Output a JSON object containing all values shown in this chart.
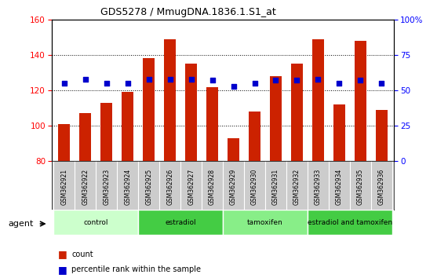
{
  "title": "GDS5278 / MmugDNA.1836.1.S1_at",
  "samples": [
    "GSM362921",
    "GSM362922",
    "GSM362923",
    "GSM362924",
    "GSM362925",
    "GSM362926",
    "GSM362927",
    "GSM362928",
    "GSM362929",
    "GSM362930",
    "GSM362931",
    "GSM362932",
    "GSM362933",
    "GSM362934",
    "GSM362935",
    "GSM362936"
  ],
  "counts": [
    101,
    107,
    113,
    119,
    138,
    149,
    135,
    122,
    93,
    108,
    128,
    135,
    149,
    112,
    148,
    109
  ],
  "percentile_ranks": [
    55,
    58,
    55,
    55,
    58,
    58,
    58,
    57,
    53,
    55,
    57,
    57,
    58,
    55,
    57,
    55
  ],
  "bar_color": "#cc2200",
  "dot_color": "#0000cc",
  "ylim_left": [
    80,
    160
  ],
  "ylim_right": [
    0,
    100
  ],
  "yticks_left": [
    80,
    100,
    120,
    140,
    160
  ],
  "yticks_right": [
    0,
    25,
    50,
    75,
    100
  ],
  "ytick_labels_right": [
    "0",
    "25",
    "50",
    "75",
    "100%"
  ],
  "groups": [
    {
      "label": "control",
      "start": 0,
      "end": 4,
      "color": "#ccffcc"
    },
    {
      "label": "estradiol",
      "start": 4,
      "end": 8,
      "color": "#44cc44"
    },
    {
      "label": "tamoxifen",
      "start": 8,
      "end": 12,
      "color": "#88ee88"
    },
    {
      "label": "estradiol and tamoxifen",
      "start": 12,
      "end": 16,
      "color": "#44cc44"
    }
  ],
  "agent_label": "agent",
  "legend_count_label": "count",
  "legend_pct_label": "percentile rank within the sample",
  "plot_bg_color": "#ffffff",
  "tick_area_bg": "#cccccc",
  "bar_bottom": 80
}
